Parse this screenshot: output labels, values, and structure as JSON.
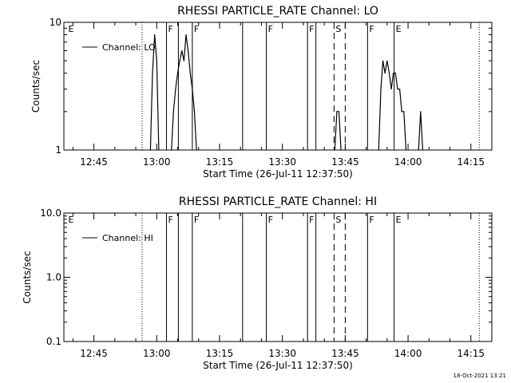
{
  "footer": {
    "timestamp": "18-Oct-2021 13:21"
  },
  "chart_data": [
    {
      "type": "line",
      "title": "RHESSI PARTICLE_RATE Channel: LO",
      "xlabel": "Start Time (26-Jul-11 12:37:50)",
      "ylabel": "Counts/sec",
      "yscale": "log",
      "ylim": [
        1,
        10
      ],
      "y_ticks": [
        "1",
        "10"
      ],
      "xlim": [
        "12:37:50",
        "14:20:00"
      ],
      "x_ticks": [
        "12:45",
        "13:00",
        "13:15",
        "13:30",
        "13:45",
        "14:00",
        "14:15"
      ],
      "legend": {
        "label": "Channel: LO",
        "position": "top-left"
      },
      "series": [
        {
          "name": "Channel: LO",
          "points": [
            [
              "12:58:30",
              1
            ],
            [
              "12:59:00",
              4
            ],
            [
              "12:59:30",
              8
            ],
            [
              "13:00:00",
              5
            ],
            [
              "13:00:30",
              1
            ],
            [
              "13:03:30",
              1
            ],
            [
              "13:04:00",
              2
            ],
            [
              "13:04:30",
              3
            ],
            [
              "13:05:00",
              4
            ],
            [
              "13:05:30",
              5
            ],
            [
              "13:06:00",
              6
            ],
            [
              "13:06:30",
              5
            ],
            [
              "13:07:00",
              8
            ],
            [
              "13:07:30",
              6
            ],
            [
              "13:08:00",
              4
            ],
            [
              "13:08:30",
              3
            ],
            [
              "13:09:00",
              2
            ],
            [
              "13:09:30",
              1
            ],
            [
              "13:42:30",
              1
            ],
            [
              "13:43:00",
              2
            ],
            [
              "13:43:30",
              2
            ],
            [
              "13:44:00",
              1
            ],
            [
              "13:53:00",
              1
            ],
            [
              "13:53:30",
              3
            ],
            [
              "13:54:00",
              5
            ],
            [
              "13:54:30",
              4
            ],
            [
              "13:55:00",
              5
            ],
            [
              "13:55:30",
              4
            ],
            [
              "13:56:00",
              3
            ],
            [
              "13:56:30",
              4
            ],
            [
              "13:57:00",
              4
            ],
            [
              "13:57:30",
              3
            ],
            [
              "13:58:00",
              3
            ],
            [
              "13:58:30",
              2
            ],
            [
              "13:59:00",
              2
            ],
            [
              "13:59:30",
              1
            ],
            [
              "14:02:30",
              1
            ],
            [
              "14:03:00",
              2
            ],
            [
              "14:03:30",
              1
            ]
          ]
        }
      ],
      "markers": [
        {
          "time": "12:38:30",
          "style": "none",
          "label": "E"
        },
        {
          "time": "12:56:30",
          "style": "dotted",
          "label": ""
        },
        {
          "time": "13:02:20",
          "style": "solid",
          "label": "F"
        },
        {
          "time": "13:05:10",
          "style": "solid",
          "label": ""
        },
        {
          "time": "13:08:30",
          "style": "solid",
          "label": "F"
        },
        {
          "time": "13:20:30",
          "style": "solid",
          "label": ""
        },
        {
          "time": "13:26:10",
          "style": "solid",
          "label": "F"
        },
        {
          "time": "13:36:00",
          "style": "solid",
          "label": "F"
        },
        {
          "time": "13:38:00",
          "style": "solid",
          "label": ""
        },
        {
          "time": "13:42:20",
          "style": "dashed",
          "label": "S"
        },
        {
          "time": "13:45:00",
          "style": "dashed",
          "label": ""
        },
        {
          "time": "13:50:20",
          "style": "solid",
          "label": "F"
        },
        {
          "time": "13:56:40",
          "style": "solid",
          "label": "E"
        },
        {
          "time": "14:17:00",
          "style": "dotted",
          "label": ""
        }
      ]
    },
    {
      "type": "line",
      "title": "RHESSI PARTICLE_RATE Channel: HI",
      "xlabel": "Start Time (26-Jul-11 12:37:50)",
      "ylabel": "Counts/sec",
      "yscale": "log",
      "ylim": [
        0.1,
        10
      ],
      "y_ticks": [
        "0.1",
        "1.0",
        "10.0"
      ],
      "xlim": [
        "12:37:50",
        "14:20:00"
      ],
      "x_ticks": [
        "12:45",
        "13:00",
        "13:15",
        "13:30",
        "13:45",
        "14:00",
        "14:15"
      ],
      "legend": {
        "label": "Channel: HI",
        "position": "top-left"
      },
      "series": [
        {
          "name": "Channel: HI",
          "points": []
        }
      ],
      "markers": [
        {
          "time": "12:38:30",
          "style": "none",
          "label": "E"
        },
        {
          "time": "12:56:30",
          "style": "dotted",
          "label": ""
        },
        {
          "time": "13:02:20",
          "style": "solid",
          "label": "F"
        },
        {
          "time": "13:05:10",
          "style": "solid",
          "label": ""
        },
        {
          "time": "13:08:30",
          "style": "solid",
          "label": "F"
        },
        {
          "time": "13:20:30",
          "style": "solid",
          "label": ""
        },
        {
          "time": "13:26:10",
          "style": "solid",
          "label": "F"
        },
        {
          "time": "13:36:00",
          "style": "solid",
          "label": "F"
        },
        {
          "time": "13:38:00",
          "style": "solid",
          "label": ""
        },
        {
          "time": "13:42:20",
          "style": "dashed",
          "label": "S"
        },
        {
          "time": "13:45:00",
          "style": "dashed",
          "label": ""
        },
        {
          "time": "13:50:20",
          "style": "solid",
          "label": "F"
        },
        {
          "time": "13:56:40",
          "style": "solid",
          "label": "E"
        },
        {
          "time": "14:17:00",
          "style": "dotted",
          "label": ""
        }
      ]
    }
  ]
}
